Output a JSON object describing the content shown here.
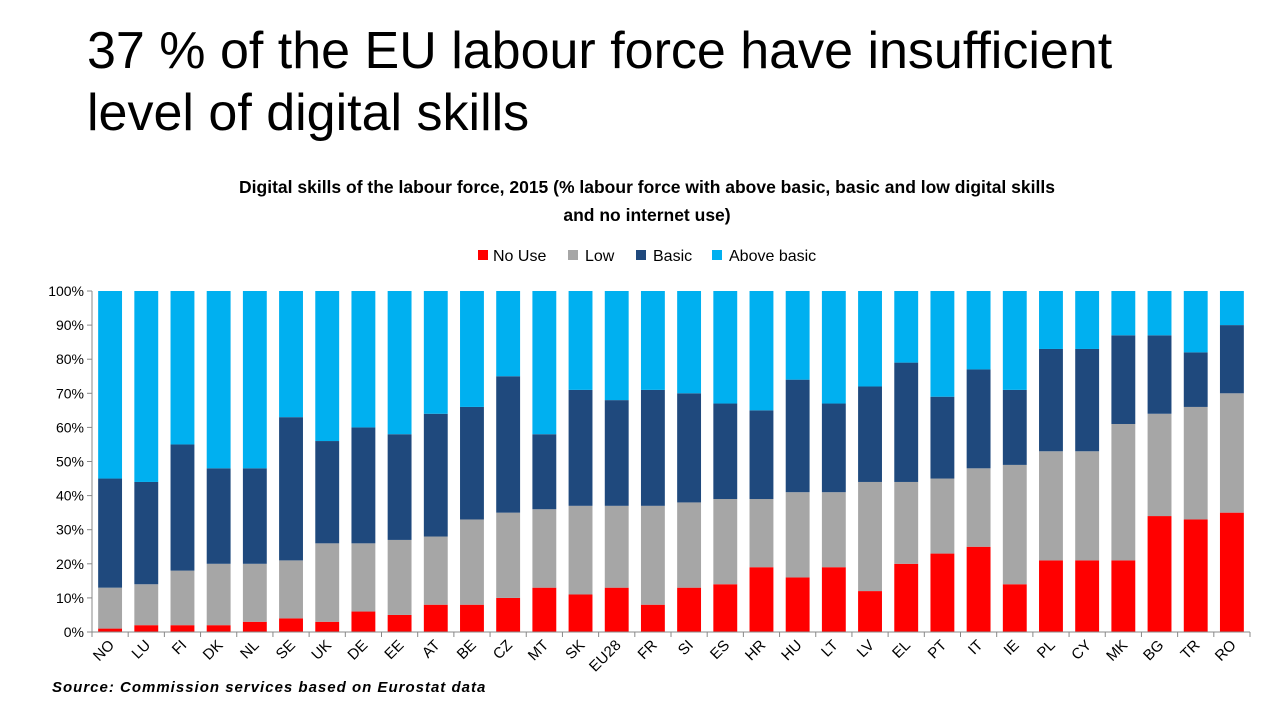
{
  "slide": {
    "title_line1": "37 % of the EU labour force have insufficient",
    "title_line2": "level of digital skills"
  },
  "source": "Source: Commission services based on Eurostat data",
  "colors": {
    "no_use": "#ff0000",
    "low": "#a6a6a6",
    "basic": "#1f497d",
    "above_basic": "#00b0f0",
    "axis": "#888888",
    "text": "#000000"
  },
  "chart_data": {
    "type": "bar",
    "stacked": true,
    "title_line1": "Digital skills of the labour force, 2015 (% labour force with above basic, basic and low digital skills",
    "title_line2": "and no internet use)",
    "xlabel": "",
    "ylabel": "",
    "ylim": [
      0,
      100
    ],
    "yticks": [
      "0%",
      "10%",
      "20%",
      "30%",
      "40%",
      "50%",
      "60%",
      "70%",
      "80%",
      "90%",
      "100%"
    ],
    "legend_position": "top",
    "grid": false,
    "categories": [
      "NO",
      "LU",
      "FI",
      "DK",
      "NL",
      "SE",
      "UK",
      "DE",
      "EE",
      "AT",
      "BE",
      "CZ",
      "MT",
      "SK",
      "EU28",
      "FR",
      "SI",
      "ES",
      "HR",
      "HU",
      "LT",
      "LV",
      "EL",
      "PT",
      "IT",
      "IE",
      "PL",
      "CY",
      "MK",
      "BG",
      "TR",
      "RO"
    ],
    "series": [
      {
        "name": "No Use",
        "color": "#ff0000",
        "values": [
          1,
          2,
          2,
          2,
          3,
          4,
          3,
          6,
          5,
          8,
          8,
          10,
          13,
          11,
          13,
          8,
          13,
          14,
          19,
          16,
          19,
          12,
          20,
          23,
          25,
          14,
          21,
          21,
          21,
          34,
          33,
          35
        ]
      },
      {
        "name": "Low",
        "color": "#a6a6a6",
        "values": [
          12,
          12,
          16,
          18,
          17,
          17,
          23,
          20,
          22,
          20,
          25,
          25,
          23,
          26,
          24,
          29,
          25,
          25,
          20,
          25,
          22,
          32,
          24,
          22,
          23,
          35,
          32,
          32,
          40,
          30,
          33,
          35
        ]
      },
      {
        "name": "Basic",
        "color": "#1f497d",
        "values": [
          32,
          30,
          37,
          28,
          28,
          42,
          30,
          34,
          31,
          36,
          33,
          40,
          22,
          34,
          31,
          34,
          32,
          28,
          26,
          33,
          26,
          28,
          35,
          24,
          29,
          22,
          30,
          30,
          26,
          23,
          16,
          20
        ]
      },
      {
        "name": "Above basic",
        "color": "#00b0f0",
        "values": [
          55,
          56,
          45,
          52,
          52,
          37,
          44,
          40,
          42,
          36,
          34,
          25,
          42,
          29,
          32,
          29,
          30,
          33,
          35,
          26,
          33,
          28,
          21,
          31,
          23,
          29,
          17,
          17,
          13,
          13,
          18,
          10
        ]
      }
    ]
  }
}
